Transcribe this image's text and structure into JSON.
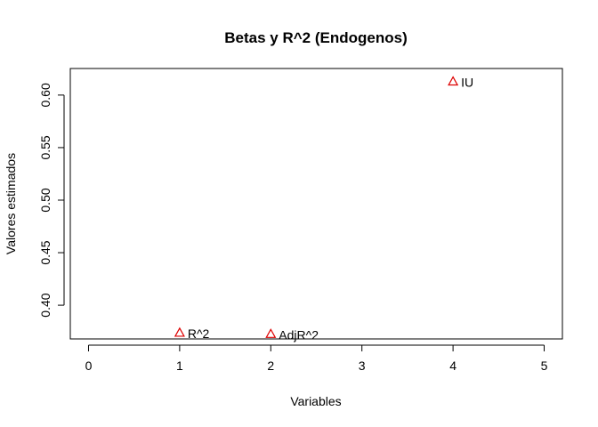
{
  "chart_data": {
    "type": "scatter",
    "title": "Betas y R^2 (Endogenos)",
    "xlabel": "Variables",
    "ylabel": "Valores estimados",
    "xlim": [
      -0.2,
      5.2
    ],
    "ylim": [
      0.3679,
      0.6253
    ],
    "x_ticks": [
      "0",
      "1",
      "2",
      "3",
      "4",
      "5"
    ],
    "y_ticks": [
      "0.40",
      "0.45",
      "0.50",
      "0.55",
      "0.60"
    ],
    "grid": false,
    "marker": "open-triangle",
    "marker_color": "#dd0000",
    "points": [
      {
        "x": 1,
        "y": 0.3739,
        "label": "R^2"
      },
      {
        "x": 2,
        "y": 0.3727,
        "label": "AdjR^2"
      },
      {
        "x": 4,
        "y": 0.613,
        "label": "IU"
      }
    ]
  }
}
